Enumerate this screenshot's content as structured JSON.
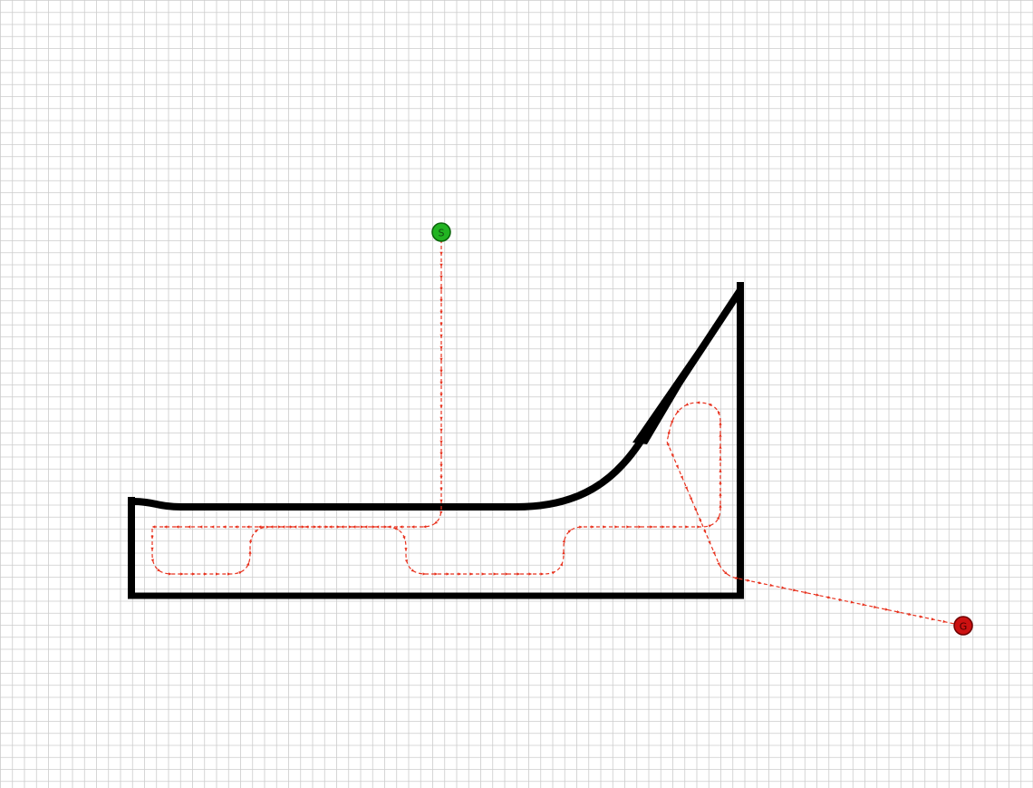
{
  "colors": {
    "background": "#ffffff",
    "grid": "#cccccc",
    "wall": "#000000",
    "path": "#e8321e",
    "start_fill": "#22b422",
    "start_stroke": "#0a640a",
    "goal_fill": "#cc1111",
    "goal_stroke": "#6e0000"
  },
  "markers": {
    "start_label": "S",
    "goal_label": "G"
  }
}
